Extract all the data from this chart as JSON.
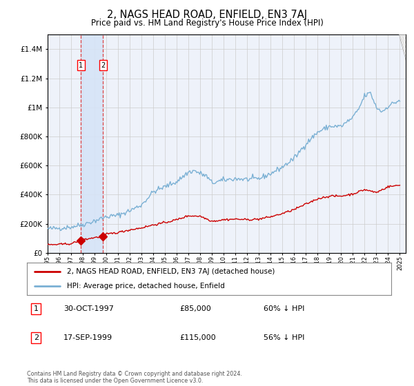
{
  "title": "2, NAGS HEAD ROAD, ENFIELD, EN3 7AJ",
  "subtitle": "Price paid vs. HM Land Registry's House Price Index (HPI)",
  "title_fontsize": 10.5,
  "subtitle_fontsize": 8.5,
  "background_color": "#ffffff",
  "plot_bg_color": "#eef2fa",
  "grid_color": "#cccccc",
  "hpi_color": "#7ab0d4",
  "price_color": "#cc0000",
  "purchase1_date": 1997.83,
  "purchase1_price": 85000,
  "purchase2_date": 1999.71,
  "purchase2_price": 115000,
  "legend_line1": "2, NAGS HEAD ROAD, ENFIELD, EN3 7AJ (detached house)",
  "legend_line2": "HPI: Average price, detached house, Enfield",
  "table_row1_num": "1",
  "table_row1_date": "30-OCT-1997",
  "table_row1_price": "£85,000",
  "table_row1_hpi": "60% ↓ HPI",
  "table_row2_num": "2",
  "table_row2_date": "17-SEP-1999",
  "table_row2_price": "£115,000",
  "table_row2_hpi": "56% ↓ HPI",
  "footer": "Contains HM Land Registry data © Crown copyright and database right 2024.\nThis data is licensed under the Open Government Licence v3.0.",
  "ylim_max": 1500000,
  "xmin": 1995.0,
  "xmax": 2025.5,
  "span_color": "#d6e4f7",
  "vline_color": "#dd4444"
}
